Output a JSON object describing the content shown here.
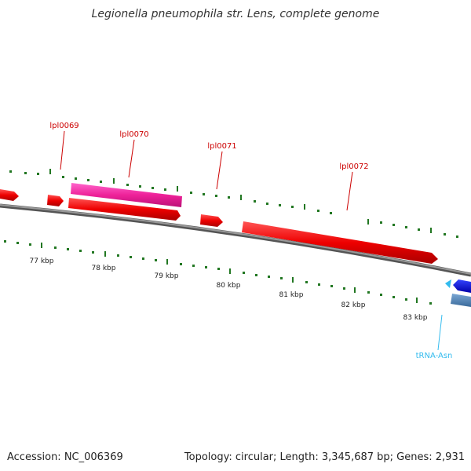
{
  "title": "Legionella pneumophila str. Lens, complete genome",
  "footer": {
    "accession": "Accession: NC_006369",
    "summary": "Topology: circular; Length: 3,345,687 bp; Genes: 2,931"
  },
  "ticks": [
    "77 kbp",
    "78 kbp",
    "79 kbp",
    "80 kbp",
    "81 kbp",
    "82 kbp",
    "83 kbp"
  ],
  "genes": [
    "lpl0069",
    "lpl0070",
    "lpl0071",
    "lpl0072"
  ],
  "features": {
    "trna": "tRNA-Asn"
  },
  "colors": {
    "gene": "#ee0000",
    "gene_highlight": "#ee2299",
    "backbone": "#888888",
    "tick": "#227722",
    "trna": "#33bbee",
    "blue_gene": "#0000cc",
    "steel_gene": "#4a7fb0"
  }
}
